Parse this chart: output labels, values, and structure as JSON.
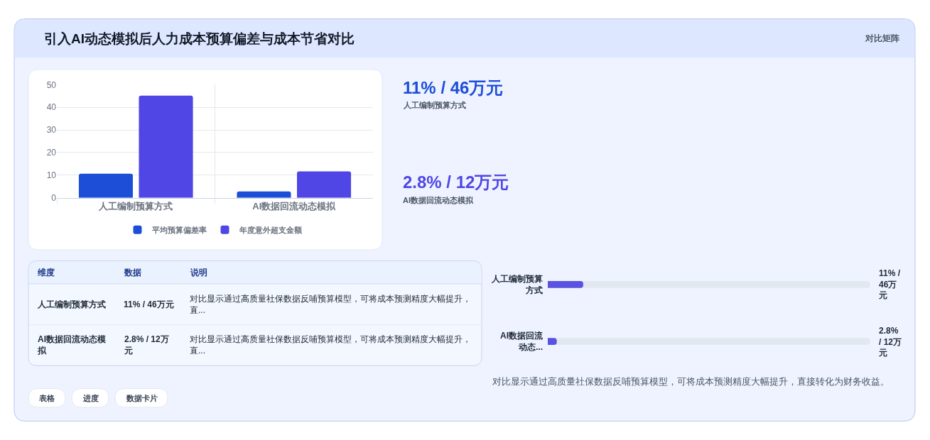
{
  "chart_data": [
    {
      "type": "other",
      "title": "引入AI动态模拟后人力成本预算偏差与成本节省对比",
      "annotations": [
        "对比矩阵"
      ]
    },
    {
      "type": "bar",
      "categories": [
        "人工编制预算方式",
        "AI数据回流动态模拟"
      ],
      "series": [
        {
          "name": "平均预算偏差率",
          "color": "#1d4ed8",
          "values": [
            10.7,
            2.8
          ]
        },
        {
          "name": "年度意外超支金额",
          "color": "#4f46e5",
          "values": [
            45.2,
            11.7
          ]
        }
      ],
      "ylim": [
        0,
        50
      ],
      "yticks": [
        0,
        10,
        20,
        30,
        40,
        50
      ],
      "grid": true,
      "legend": "bottom"
    },
    {
      "type": "other",
      "title": "11% / 46万元",
      "subtitle": "人工编制预算方式",
      "color": "#1d4ed8"
    },
    {
      "type": "other",
      "title": "2.8% / 12万元",
      "subtitle": "AI数据回流动态模拟",
      "color": "#4f46e5"
    },
    {
      "type": "other",
      "categories": [
        "维度",
        "数据",
        "说明"
      ],
      "y_categories": [
        "人工编制预算方式",
        "AI数据回流动态模拟"
      ],
      "cell_labels": [
        [
          "11% / 46万元",
          "对比显示通过高质量社保数据反哺预算模型，可将成本预测精度大幅提升，直..."
        ],
        [
          "2.8% / 12万元",
          "对比显示通过高质量社保数据反哺预算模型，可将成本预测精度大幅提升，直..."
        ]
      ]
    },
    {
      "type": "bar",
      "orientation": "horizontal",
      "categories": [
        "人工编制预算方式",
        "AI数据回流动态..."
      ],
      "values": [
        11,
        2.8
      ],
      "color": "#5a52e0",
      "xlim": [
        0,
        100
      ],
      "value_labels": [
        "11% / 46万元",
        "2.8% / 12万元"
      ],
      "tick_labels": "y",
      "annotations": [
        "对比显示通过高质量社保数据反哺预算模型，可将成本预测精度大幅提升，直接转化为财务收益。"
      ]
    },
    {
      "type": "other",
      "annotations": [
        "表格",
        "进度",
        "数据卡片"
      ]
    }
  ]
}
